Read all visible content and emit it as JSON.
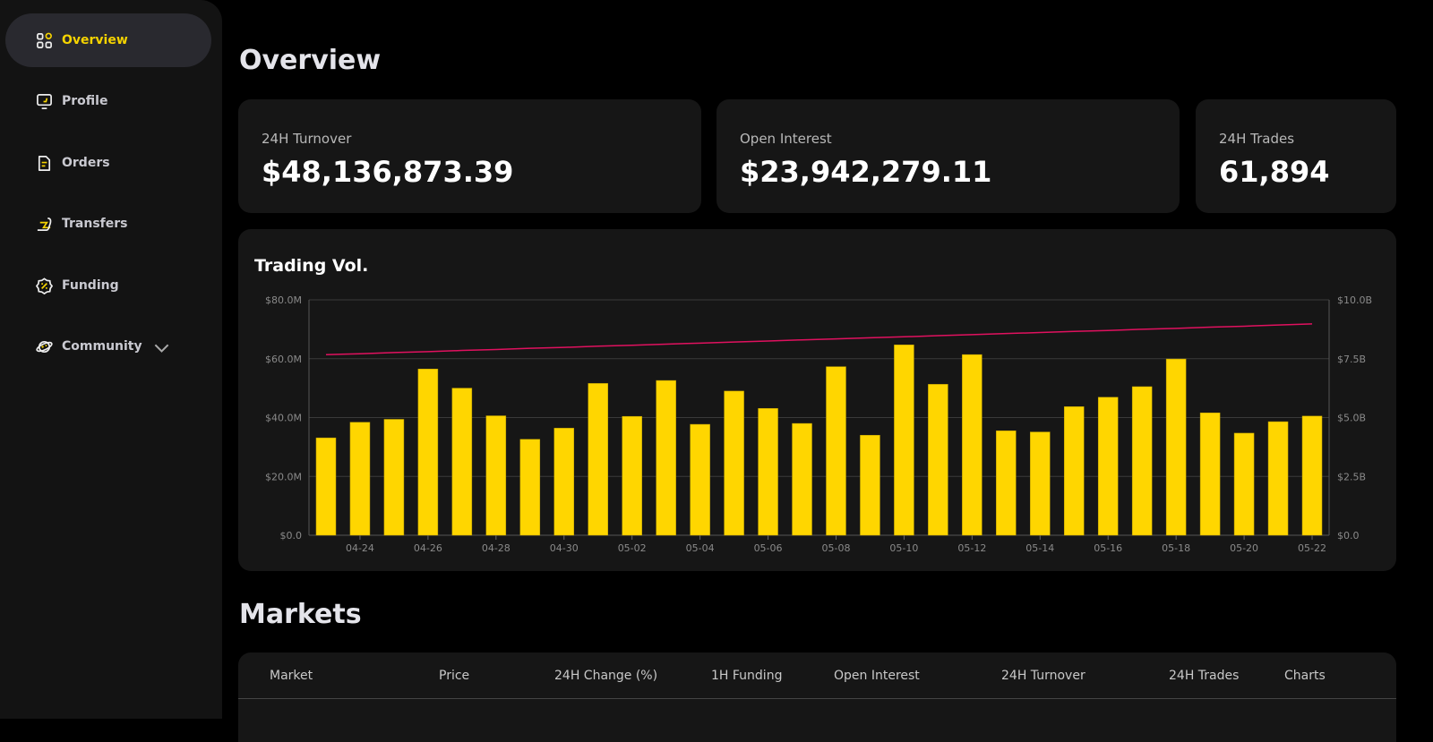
{
  "sidebar": {
    "items": [
      {
        "label": "Overview",
        "icon": "grid-icon",
        "active": true
      },
      {
        "label": "Profile",
        "icon": "monitor-icon"
      },
      {
        "label": "Orders",
        "icon": "document-icon"
      },
      {
        "label": "Transfers",
        "icon": "transfer-icon"
      },
      {
        "label": "Funding",
        "icon": "percent-badge-icon"
      },
      {
        "label": "Community",
        "icon": "planet-icon",
        "has_dropdown": true
      }
    ]
  },
  "overview": {
    "title": "Overview",
    "stats": [
      {
        "label": "24H Turnover",
        "value": "$48,136,873.39"
      },
      {
        "label": "Open Interest",
        "value": "$23,942,279.11"
      },
      {
        "label": "24H Trades",
        "value": "61,894"
      }
    ]
  },
  "chart": {
    "title": "Trading Vol."
  },
  "chart_data": {
    "type": "bar",
    "title": "Trading Vol.",
    "categories": [
      "04-23",
      "04-24",
      "04-25",
      "04-26",
      "04-27",
      "04-28",
      "04-29",
      "04-30",
      "05-01",
      "05-02",
      "05-03",
      "05-04",
      "05-05",
      "05-06",
      "05-07",
      "05-08",
      "05-09",
      "05-10",
      "05-11",
      "05-12",
      "05-13",
      "05-14",
      "05-15",
      "05-16",
      "05-17",
      "05-18",
      "05-19",
      "05-20",
      "05-21",
      "05-22"
    ],
    "x_tick_labels": [
      "04-24",
      "04-26",
      "04-28",
      "04-30",
      "05-02",
      "05-04",
      "05-06",
      "05-08",
      "05-10",
      "05-12",
      "05-14",
      "05-16",
      "05-18",
      "05-20",
      "05-22"
    ],
    "series": [
      {
        "type": "bar",
        "axis": "left",
        "unit": "M USD",
        "color": "#FFD600",
        "values": [
          33.1,
          38.4,
          39.4,
          56.5,
          50.0,
          40.6,
          32.6,
          36.4,
          51.6,
          40.4,
          52.6,
          37.7,
          49.0,
          43.1,
          38.0,
          57.3,
          34.0,
          64.7,
          51.3,
          61.4,
          35.5,
          35.1,
          43.7,
          46.9,
          50.5,
          59.9,
          41.6,
          34.7,
          38.6,
          40.5
        ]
      },
      {
        "type": "line",
        "axis": "right",
        "unit": "B USD",
        "color": "#E0115F",
        "values": [
          7.67,
          7.71,
          7.76,
          7.8,
          7.85,
          7.89,
          7.94,
          7.98,
          8.03,
          8.07,
          8.12,
          8.16,
          8.21,
          8.25,
          8.3,
          8.34,
          8.39,
          8.43,
          8.48,
          8.52,
          8.57,
          8.61,
          8.66,
          8.7,
          8.75,
          8.79,
          8.84,
          8.88,
          8.93,
          8.98
        ]
      }
    ],
    "y_left": {
      "range": [
        0,
        80
      ],
      "ticks": [
        "$0.0",
        "$20.0M",
        "$40.0M",
        "$60.0M",
        "$80.0M"
      ]
    },
    "y_right": {
      "range": [
        0,
        10
      ],
      "ticks": [
        "$0.0",
        "$2.5B",
        "$5.0B",
        "$7.5B",
        "$10.0B"
      ]
    },
    "grid": true,
    "legend": "none"
  },
  "markets": {
    "title": "Markets",
    "columns": [
      "Market",
      "Price",
      "24H Change (%)",
      "1H Funding",
      "Open Interest",
      "24H Turnover",
      "24H Trades",
      "Charts"
    ]
  }
}
